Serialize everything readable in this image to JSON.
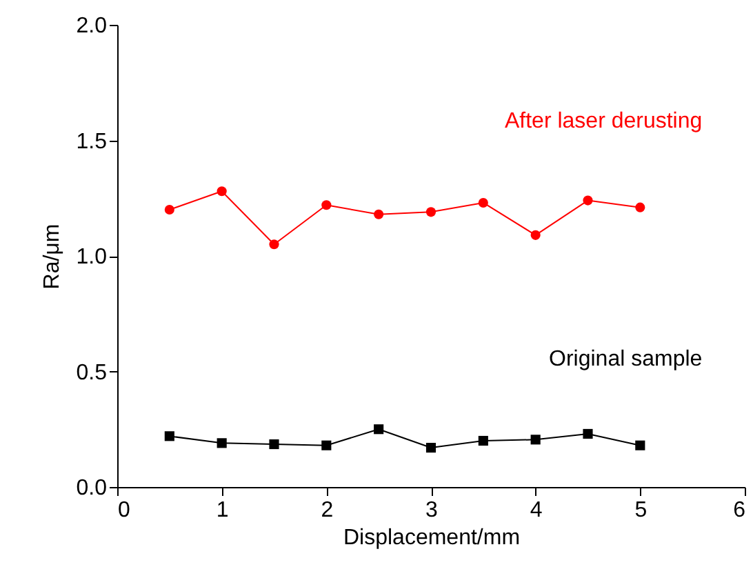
{
  "chart_data": {
    "type": "line",
    "xlabel": "Displacement/mm",
    "ylabel": "Ra/μm",
    "x": [
      0.5,
      1,
      1.5,
      2,
      2.5,
      3,
      3.5,
      4,
      4.5,
      5
    ],
    "xlim": [
      0,
      6
    ],
    "xticks": [
      0,
      1,
      2,
      3,
      4,
      5,
      6
    ],
    "ylim": [
      0,
      2
    ],
    "yticks": [
      {
        "value": 0,
        "label": "0.0"
      },
      0.5,
      {
        "value": 1,
        "label": "1.0"
      },
      1.5,
      {
        "value": 2,
        "label": "2.0"
      }
    ],
    "grid": false,
    "series": [
      {
        "name": "After laser derusting",
        "color": "#ff0000",
        "marker": "circle",
        "values": [
          1.2,
          1.28,
          1.05,
          1.22,
          1.18,
          1.19,
          1.23,
          1.09,
          1.24,
          1.21
        ]
      },
      {
        "name": "Original sample",
        "color": "#000000",
        "marker": "square",
        "values": [
          0.22,
          0.19,
          0.185,
          0.18,
          0.25,
          0.17,
          0.2,
          0.205,
          0.23,
          0.18
        ]
      }
    ]
  }
}
